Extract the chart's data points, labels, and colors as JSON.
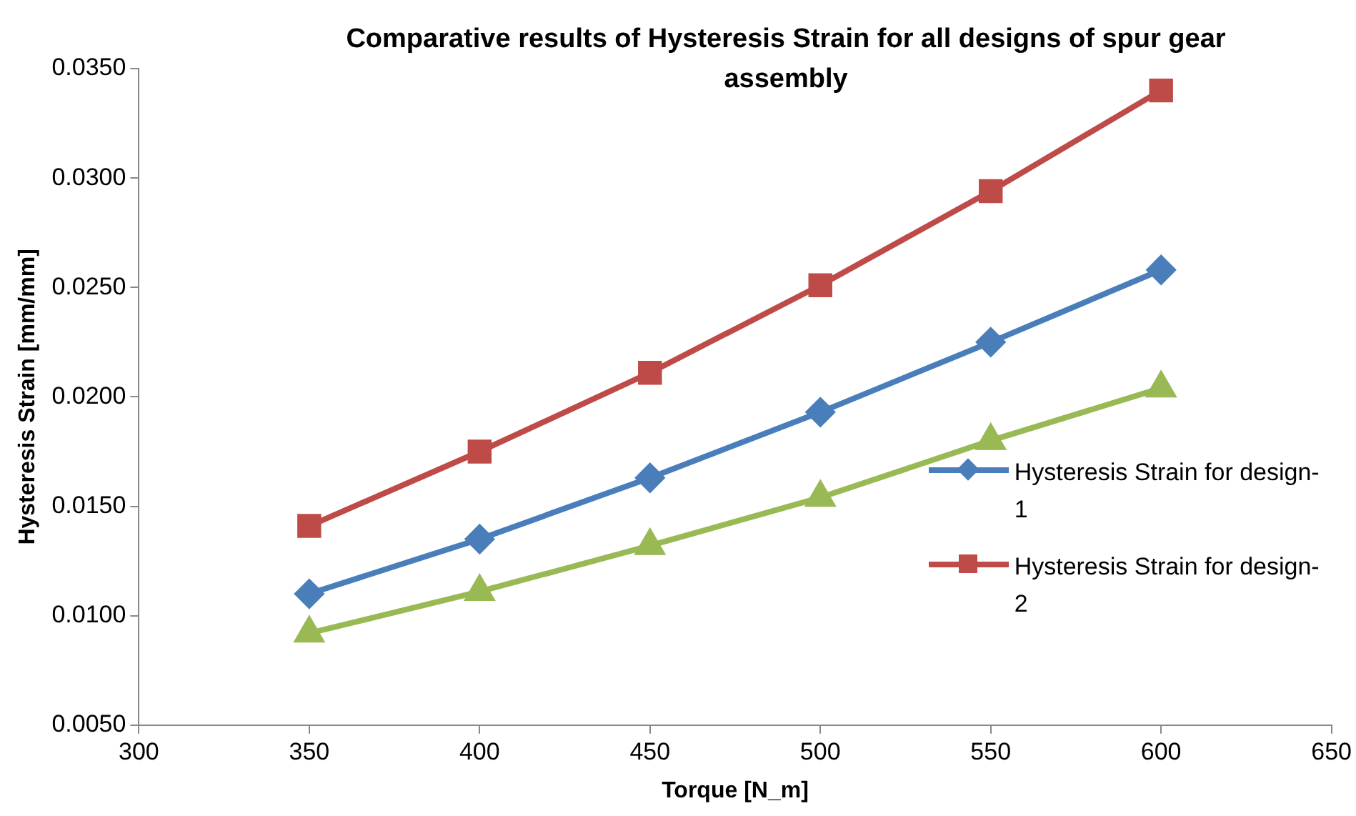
{
  "chart_data": {
    "type": "line",
    "title": "Comparative results of Hysteresis Strain for all designs of spur gear assembly",
    "xlabel": "Torque [N_m]",
    "ylabel": "Hysteresis Strain [mm/mm]",
    "x": [
      350,
      400,
      450,
      500,
      550,
      600
    ],
    "series": [
      {
        "name": "Hysteresis Strain for design-1",
        "color": "#4a7ebb",
        "marker": "diamond",
        "values": [
          0.011,
          0.0135,
          0.0163,
          0.0193,
          0.0225,
          0.0258
        ]
      },
      {
        "name": "Hysteresis Strain for design-2",
        "color": "#be4b48",
        "marker": "square",
        "values": [
          0.0141,
          0.0175,
          0.0211,
          0.0251,
          0.0294,
          0.034
        ]
      },
      {
        "color": "#98b954",
        "marker": "triangle",
        "values": [
          0.0092,
          0.0111,
          0.0132,
          0.0154,
          0.018,
          0.0204
        ]
      }
    ],
    "xlim": [
      300,
      650
    ],
    "xticks": [
      300,
      350,
      400,
      450,
      500,
      550,
      600,
      650
    ],
    "ylim": [
      0.005,
      0.035
    ],
    "yticks": [
      {
        "value": 0.005,
        "label": "0.0050"
      },
      {
        "value": 0.01,
        "label": "0.0100"
      },
      {
        "value": 0.015,
        "label": "0.0150"
      },
      {
        "value": 0.02,
        "label": "0.0200"
      },
      {
        "value": 0.025,
        "label": "0.0250"
      },
      {
        "value": 0.03,
        "label": "0.0300"
      },
      {
        "value": 0.035,
        "label": "0.0350"
      }
    ],
    "grid": false,
    "legend": "right"
  }
}
